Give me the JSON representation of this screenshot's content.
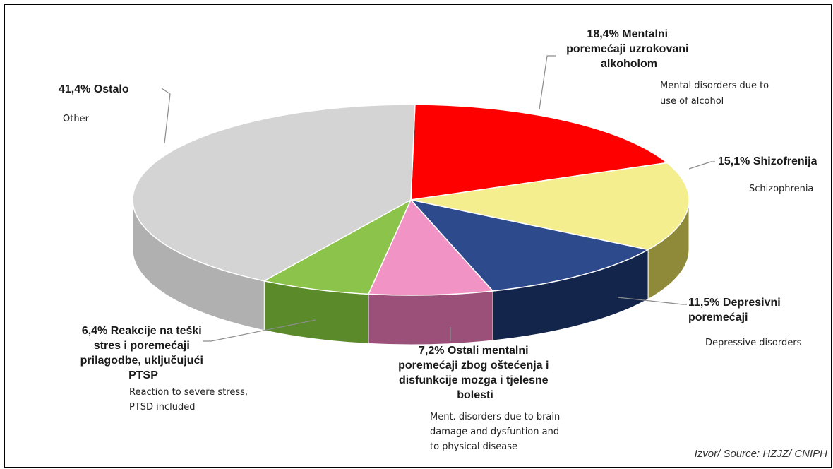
{
  "chart_data": {
    "type": "pie",
    "title": "",
    "slices": [
      {
        "value": 18.4,
        "pct_label": "18,4%",
        "label_hr": "Mentalni poremećaji uzrokovani alkoholom",
        "label_en": "Mental disorders due to use of alcohol",
        "color": "#ff0000",
        "side_color": "#b00000"
      },
      {
        "value": 15.1,
        "pct_label": "15,1%",
        "label_hr": "Shizofrenija",
        "label_en": "Schizophrenia",
        "color": "#f4ee8e",
        "side_color": "#8f8a3a"
      },
      {
        "value": 11.5,
        "pct_label": "11,5%",
        "label_hr": "Depresivni poremećaji",
        "label_en": "Depressive disorders",
        "color": "#2c4a8c",
        "side_color": "#14254c"
      },
      {
        "value": 7.2,
        "pct_label": "7,2%",
        "label_hr": "Ostali mentalni poremećaji zbog oštećenja i disfunkcije mozga i tjelesne bolesti",
        "label_en": "Ment. disorders due to brain damage and dysfuntion and to physical disease",
        "color": "#f293c6",
        "side_color": "#9a5078"
      },
      {
        "value": 6.4,
        "pct_label": "6,4%",
        "label_hr": "Reakcije na teški stres i poremećaji prilagodbe, uključujući PTSP",
        "label_en": "Reaction to severe stress, PTSD included",
        "color": "#8cc34a",
        "side_color": "#5a8a2a"
      },
      {
        "value": 41.4,
        "pct_label": "41,4%",
        "label_hr": "Ostalo",
        "label_en": "Other",
        "color": "#d4d4d4",
        "side_color": "#b0b0b0"
      }
    ]
  },
  "labels": {
    "alcohol": {
      "hr": [
        "18,4% Mentalni",
        "poremećaji uzrokovani",
        "alkoholom"
      ],
      "en": [
        "Mental disorders due to",
        "use of alcohol"
      ]
    },
    "schizo": {
      "hr": [
        "15,1% Shizofrenija"
      ],
      "en": [
        "Schizophrenia"
      ]
    },
    "depress": {
      "hr": [
        "11,5% Depresivni",
        "poremećaji"
      ],
      "en": [
        "Depressive disorders"
      ]
    },
    "brain": {
      "hr": [
        "7,2% Ostali mentalni",
        "poremećaji zbog oštećenja i",
        "disfunkcije mozga i tjelesne",
        "bolesti"
      ],
      "en": [
        "Ment. disorders due to brain",
        "damage and dysfuntion and",
        "to physical disease"
      ]
    },
    "stress": {
      "hr": [
        "6,4% Reakcije na teški",
        "stres i poremećaji",
        "prilagodbe, uključujući",
        "PTSP"
      ],
      "en": [
        "Reaction to severe stress,",
        "PTSD included"
      ]
    },
    "other": {
      "hr": [
        "41,4% Ostalo"
      ],
      "en": [
        "Other"
      ]
    }
  },
  "source": "Izvor/ Source: HZJZ/ CNIPH"
}
